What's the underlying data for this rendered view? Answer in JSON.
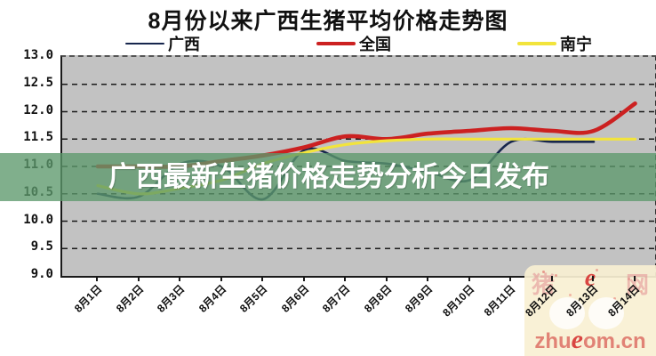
{
  "title": "8月份以来广西生猪平均价格走势图",
  "banner": {
    "text": "广西最新生猪价格走势分析今日发布"
  },
  "watermark": {
    "site": {
      "left": "猪",
      "e": "e",
      "right": "网"
    },
    "url": {
      "prefix": "zhu",
      "e": "e",
      "suffix": "om.cn"
    }
  },
  "chart_data": {
    "type": "line",
    "title": "8月份以来广西生猪平均价格走势图",
    "xlabel": "",
    "ylabel": "",
    "categories": [
      "8月1日",
      "8月2日",
      "8月3日",
      "8月4日",
      "8月5日",
      "8月6日",
      "8月7日",
      "8月8日",
      "8月9日",
      "8月10日",
      "8月11日",
      "8月12日",
      "8月13日",
      "8月14日"
    ],
    "ylim": [
      9.0,
      13.0
    ],
    "ytick_step": 0.5,
    "yticks": [
      "13.0",
      "12.5",
      "12.0",
      "11.5",
      "11.0",
      "10.5",
      "10.0",
      "9.5",
      "9.0"
    ],
    "grid": "horizontal-dashed",
    "legend_position": "top",
    "plot_background": "#c2c2c2",
    "series": [
      {
        "name": "广西",
        "color": "#17264d",
        "values": [
          10.5,
          10.45,
          11.05,
          11.0,
          10.4,
          11.3,
          11.1,
          11.05,
          10.9,
          10.75,
          11.45,
          11.45,
          11.45,
          null
        ]
      },
      {
        "name": "全国",
        "color": "#cc2121",
        "values": [
          11.0,
          11.0,
          11.0,
          11.1,
          11.2,
          11.35,
          11.55,
          11.5,
          11.6,
          11.65,
          11.7,
          11.65,
          11.65,
          12.15
        ]
      },
      {
        "name": "南宁",
        "color": "#f2e43c",
        "values": [
          10.65,
          10.5,
          10.6,
          10.75,
          11.05,
          11.25,
          11.4,
          11.47,
          11.5,
          11.5,
          11.5,
          11.5,
          11.5,
          11.5
        ]
      }
    ]
  }
}
